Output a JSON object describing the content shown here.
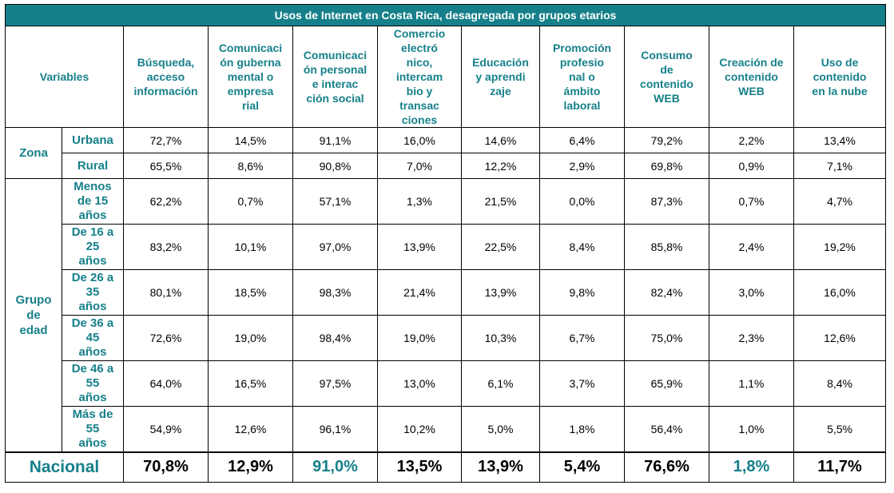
{
  "title": "Usos de Internet en Costa Rica, desagregada por grupos etarios",
  "variables_label": "Variables",
  "columns": [
    [
      "Búsqueda,",
      "acceso",
      "información"
    ],
    [
      "Comunicaci",
      "ón guberna",
      "mental o",
      "empresa",
      "rial"
    ],
    [
      "Comunicaci",
      "ón personal",
      "e interac",
      "ción social"
    ],
    [
      "Comercio",
      "electró",
      "nico,",
      "intercam",
      "bio y",
      "transac",
      "ciones"
    ],
    [
      "Educación",
      "y aprendi",
      "zaje"
    ],
    [
      "Promoción",
      "profesio",
      "nal o",
      "ámbito",
      "laboral"
    ],
    [
      "Consumo",
      "de",
      "contenido",
      "WEB"
    ],
    [
      "Creación de",
      "contenido",
      "WEB"
    ],
    [
      "Uso de",
      "contenido",
      "en la nube"
    ]
  ],
  "zona": {
    "label": "Zona",
    "rows": [
      {
        "label": [
          "Urbana"
        ],
        "values": [
          "72,7%",
          "14,5%",
          "91,1%",
          "16,0%",
          "14,6%",
          "6,4%",
          "79,2%",
          "2,2%",
          "13,4%"
        ]
      },
      {
        "label": [
          "Rural"
        ],
        "values": [
          "65,5%",
          "8,6%",
          "90,8%",
          "7,0%",
          "12,2%",
          "2,9%",
          "69,8%",
          "0,9%",
          "7,1%"
        ]
      }
    ]
  },
  "edad": {
    "label": [
      "Grupo",
      "de",
      "edad"
    ],
    "rows": [
      {
        "label": [
          "Menos",
          "de 15",
          "años"
        ],
        "values": [
          "62,2%",
          "0,7%",
          "57,1%",
          "1,3%",
          "21,5%",
          "0,0%",
          "87,3%",
          "0,7%",
          "4,7%"
        ]
      },
      {
        "label": [
          "De 16 a",
          "25",
          "años"
        ],
        "values": [
          "83,2%",
          "10,1%",
          "97,0%",
          "13,9%",
          "22,5%",
          "8,4%",
          "85,8%",
          "2,4%",
          "19,2%"
        ]
      },
      {
        "label": [
          "De 26 a",
          "35",
          "años"
        ],
        "values": [
          "80,1%",
          "18,5%",
          "98,3%",
          "21,4%",
          "13,9%",
          "9,8%",
          "82,4%",
          "3,0%",
          "16,0%"
        ]
      },
      {
        "label": [
          "De 36 a",
          "45",
          "años"
        ],
        "values": [
          "72,6%",
          "19,0%",
          "98,4%",
          "19,0%",
          "10,3%",
          "6,7%",
          "75,0%",
          "2,3%",
          "12,6%"
        ]
      },
      {
        "label": [
          "De 46 a",
          "55",
          "años"
        ],
        "values": [
          "64,0%",
          "16,5%",
          "97,5%",
          "13,0%",
          "6,1%",
          "3,7%",
          "65,9%",
          "1,1%",
          "8,4%"
        ]
      },
      {
        "label": [
          "Más de",
          "55",
          "años"
        ],
        "values": [
          "54,9%",
          "12,6%",
          "96,1%",
          "10,2%",
          "5,0%",
          "1,8%",
          "56,4%",
          "1,0%",
          "5,5%"
        ]
      }
    ]
  },
  "nacional": {
    "label": "Nacional",
    "values": [
      "70,8%",
      "12,9%",
      "91,0%",
      "13,5%",
      "13,9%",
      "5,4%",
      "76,6%",
      "1,8%",
      "11,7%"
    ],
    "highlight_indices": [
      2,
      7
    ]
  },
  "colors": {
    "accent": "#16808a",
    "header_text": "#ffffff"
  }
}
